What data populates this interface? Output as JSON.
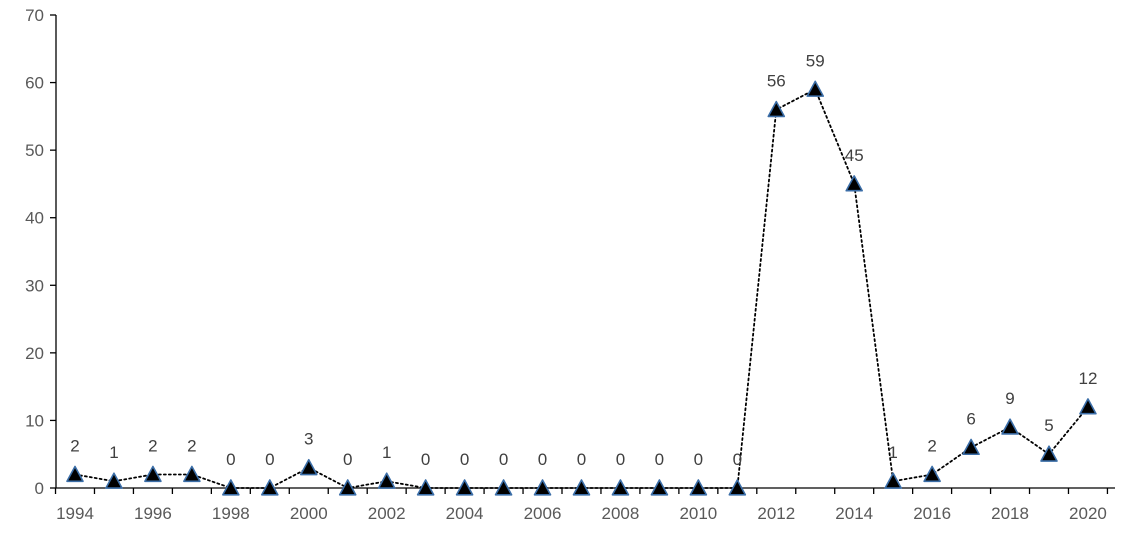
{
  "chart_data": {
    "type": "line",
    "title": "",
    "xlabel": "",
    "ylabel": "",
    "x": [
      1994,
      1995,
      1996,
      1997,
      1998,
      1999,
      2000,
      2001,
      2002,
      2003,
      2004,
      2005,
      2006,
      2007,
      2008,
      2009,
      2010,
      2011,
      2012,
      2013,
      2014,
      2015,
      2016,
      2017,
      2018,
      2019,
      2020
    ],
    "series": [
      {
        "values": [
          2,
          1,
          2,
          2,
          0,
          0,
          3,
          0,
          1,
          0,
          0,
          0,
          0,
          0,
          0,
          0,
          0,
          0,
          56,
          59,
          45,
          1,
          2,
          6,
          9,
          5,
          12
        ]
      }
    ],
    "data_labels": [
      "2",
      "1",
      "2",
      "2",
      "0",
      "0",
      "3",
      "0",
      "1",
      "0",
      "0",
      "0",
      "0",
      "0",
      "0",
      "0",
      "0",
      "0",
      "56",
      "59",
      "45",
      "1",
      "2",
      "6",
      "9",
      "5",
      "12"
    ],
    "x_tick_labels": [
      "1994",
      "1996",
      "1998",
      "2000",
      "2002",
      "2004",
      "2006",
      "2008",
      "2010",
      "2012",
      "2014",
      "2016",
      "2018",
      "2020"
    ],
    "y_tick_labels": [
      "0",
      "10",
      "20",
      "30",
      "40",
      "50",
      "60",
      "70"
    ],
    "ylim": [
      0,
      70
    ],
    "grid": false,
    "legend": "none",
    "line_style": "dotted",
    "marker": "triangle",
    "colors": {
      "line": "#000000",
      "marker_fill": "#000000",
      "marker_stroke": "#3b6ea8",
      "axis": "#000000",
      "tick_text": "#595959",
      "label_text": "#404040"
    }
  }
}
